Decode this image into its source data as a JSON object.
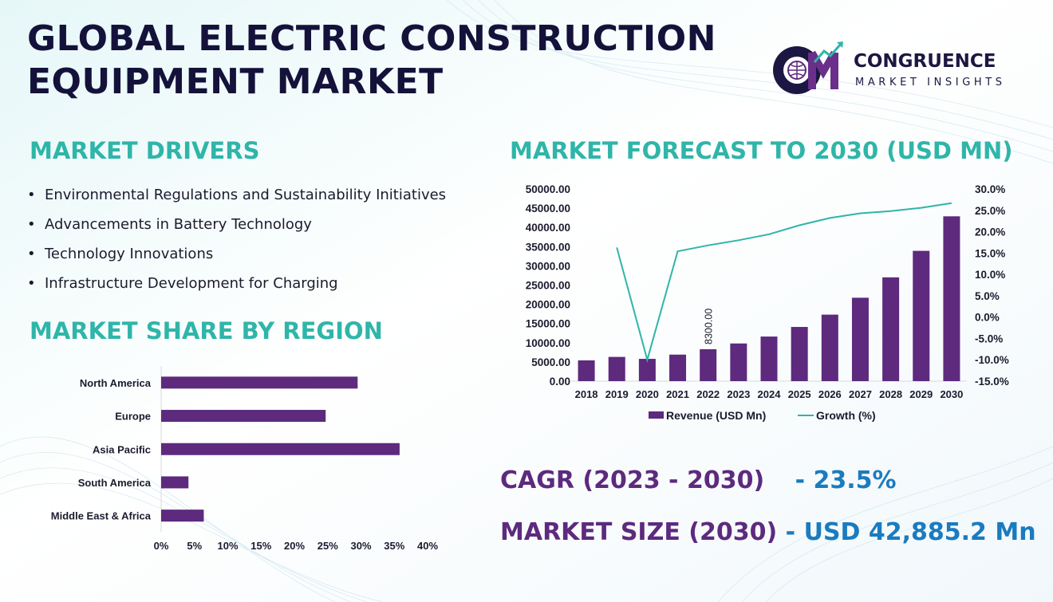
{
  "title": {
    "line1": "GLOBAL ELECTRIC CONSTRUCTION",
    "line2": "EQUIPMENT MARKET"
  },
  "logo": {
    "name": "CONGRUENCE",
    "tagline": "MARKET INSIGHTS",
    "mark": "CM"
  },
  "drivers": {
    "heading": "MARKET DRIVERS",
    "items": [
      "Environmental Regulations and Sustainability Initiatives",
      "Advancements in Battery Technology",
      "Technology Innovations",
      "Infrastructure Development for Charging"
    ]
  },
  "region": {
    "heading": "MARKET SHARE BY REGION"
  },
  "forecast": {
    "heading": "MARKET FORECAST TO 2030 (USD MN)"
  },
  "stats": {
    "cagr_label": "CAGR (2023 - 2030)",
    "cagr_value": "- 23.5%",
    "size_label": "MARKET SIZE (2030)",
    "size_dash": "-",
    "size_value": "USD  42,885.2 Mn"
  },
  "colors": {
    "title": "#14123a",
    "heading": "#2fb5a9",
    "bar": "#5d2a7e",
    "line": "#2fb5a9",
    "value": "#1a7bbf"
  },
  "chart_data": [
    {
      "type": "bar",
      "orientation": "horizontal",
      "categories": [
        "North America",
        "Europe",
        "Asia Pacific",
        "South America",
        "Middle East & Africa"
      ],
      "values": [
        29.5,
        24.7,
        35.8,
        4.1,
        6.4
      ],
      "xticks": [
        "0%",
        "5%",
        "10%",
        "15%",
        "20%",
        "25%",
        "30%",
        "35%",
        "40%"
      ],
      "xlim": [
        0,
        40
      ],
      "grid": false,
      "legend": "none"
    },
    {
      "type": "bar+line",
      "categories": [
        "2018",
        "2019",
        "2020",
        "2021",
        "2022",
        "2023",
        "2024",
        "2025",
        "2026",
        "2027",
        "2028",
        "2029",
        "2030"
      ],
      "series": [
        {
          "name": "Revenue (USD Mn)",
          "type": "bar",
          "axis": "left",
          "values": [
            5400,
            6300,
            5800,
            6900,
            8300,
            9800,
            11600,
            14100,
            17300,
            21700,
            27000,
            33900,
            42885.2
          ]
        },
        {
          "name": "Growth (%)",
          "type": "line",
          "axis": "right",
          "values": [
            null,
            16.3,
            -10.0,
            15.4,
            16.8,
            18.0,
            19.4,
            21.5,
            23.2,
            24.3,
            24.8,
            25.6,
            26.7
          ]
        }
      ],
      "data_labels": [
        {
          "category": "2022",
          "text": "8300.00"
        }
      ],
      "y_left_ticks": [
        "0.00",
        "5000.00",
        "10000.00",
        "15000.00",
        "20000.00",
        "25000.00",
        "30000.00",
        "35000.00",
        "40000.00",
        "45000.00",
        "50000.00"
      ],
      "y_left_lim": [
        0,
        50000
      ],
      "y_right_ticks": [
        "-15.0%",
        "-10.0%",
        "-5.0%",
        "0.0%",
        "5.0%",
        "10.0%",
        "15.0%",
        "20.0%",
        "25.0%",
        "30.0%"
      ],
      "y_right_lim": [
        -15,
        30
      ],
      "grid": false,
      "legend": "bottom"
    }
  ]
}
